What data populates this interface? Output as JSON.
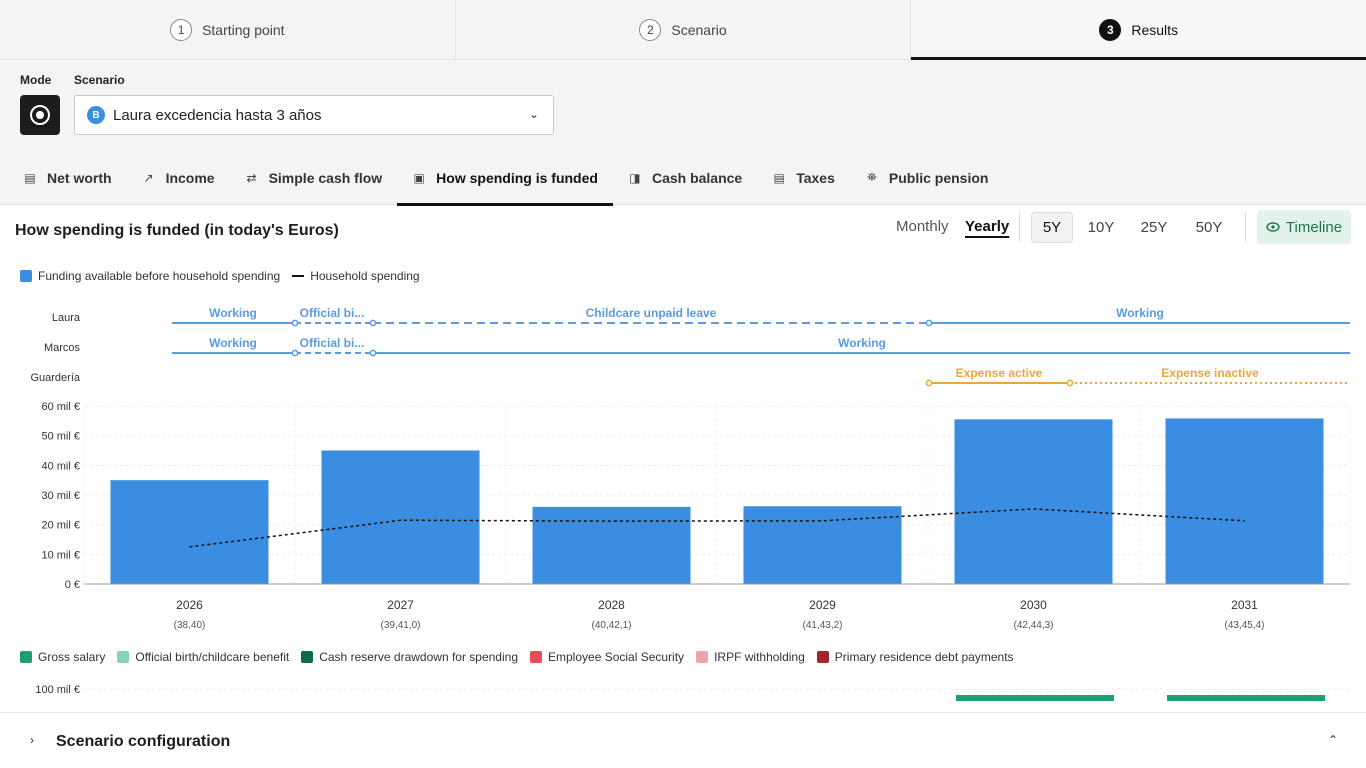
{
  "stepper": [
    {
      "num": "1",
      "label": "Starting point"
    },
    {
      "num": "2",
      "label": "Scenario"
    },
    {
      "num": "3",
      "label": "Results"
    }
  ],
  "controls": {
    "mode_label": "Mode",
    "scenario_label": "Scenario",
    "scenario_badge": "B",
    "scenario_value": "Laura excedencia hasta 3 años"
  },
  "tabs": [
    {
      "label": "Net worth",
      "icon": "chart-icon"
    },
    {
      "label": "Income",
      "icon": "trend-up-icon"
    },
    {
      "label": "Simple cash flow",
      "icon": "arrows-icon"
    },
    {
      "label": "How spending is funded",
      "icon": "wallet-icon"
    },
    {
      "label": "Cash balance",
      "icon": "cash-icon"
    },
    {
      "label": "Taxes",
      "icon": "receipt-icon"
    },
    {
      "label": "Public pension",
      "icon": "bank-icon"
    }
  ],
  "chart_header": {
    "title": "How spending is funded (in today's Euros)",
    "monthly": "Monthly",
    "yearly": "Yearly",
    "ranges": [
      "5Y",
      "10Y",
      "25Y",
      "50Y"
    ],
    "selected_range": "5Y",
    "timeline": "Timeline"
  },
  "legend_top": {
    "funding": "Funding available before household spending",
    "spending": "Household spending"
  },
  "timeline_rows": [
    {
      "name": "Laura",
      "segments": [
        "Working",
        "Official bi...",
        "Childcare unpaid leave",
        "Working"
      ]
    },
    {
      "name": "Marcos",
      "segments": [
        "Working",
        "Official bi...",
        "Working"
      ]
    },
    {
      "name": "Guardería",
      "segments": [
        "Expense active",
        "Expense inactive"
      ]
    }
  ],
  "chart_data": {
    "type": "bar",
    "categories": [
      "2026",
      "2027",
      "2028",
      "2029",
      "2030",
      "2031"
    ],
    "sublabels": [
      "(38,40)",
      "(39,41,0)",
      "(40,42,1)",
      "(41,43,2)",
      "(42,44,3)",
      "(43,45,4)"
    ],
    "series": [
      {
        "name": "Funding available before household spending",
        "type": "bar",
        "values": [
          35,
          45,
          26,
          26.2,
          55.5,
          55.8
        ],
        "color": "#3a8de0"
      },
      {
        "name": "Household spending",
        "type": "line",
        "values": [
          12.5,
          21.5,
          21.2,
          21.3,
          25.3,
          21.3
        ],
        "color": "#111111"
      }
    ],
    "yticks": [
      "0 €",
      "10 mil €",
      "20 mil €",
      "30 mil €",
      "40 mil €",
      "50 mil €",
      "60 mil €"
    ],
    "ylim": [
      0,
      60
    ],
    "grid": true
  },
  "legend_bottom": [
    {
      "label": "Gross salary",
      "color": "#1f9e6e"
    },
    {
      "label": "Official birth/childcare benefit",
      "color": "#86d3b6"
    },
    {
      "label": "Cash reserve drawdown for spending",
      "color": "#0d6b4c"
    },
    {
      "label": "Employee Social Security",
      "color": "#e84a57"
    },
    {
      "label": "IRPF withholding",
      "color": "#f0a3a8"
    },
    {
      "label": "Primary residence debt payments",
      "color": "#a7232e"
    }
  ],
  "second_chart": {
    "ytick_top": "100 mil €"
  },
  "bottom": {
    "title": "Scenario configuration"
  },
  "colors": {
    "accent_blue": "#3a8de0",
    "timeline_blue": "#5b9be0",
    "expense_orange": "#e8a83e",
    "green": "#1f9e6e"
  }
}
